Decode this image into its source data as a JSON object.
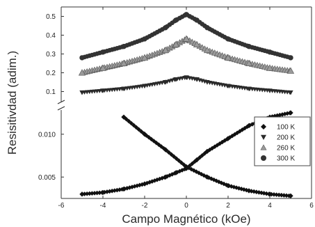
{
  "chart_data": {
    "type": "scatter",
    "xlabel": "Campo Magnético (kOe)",
    "ylabel": "Resisitivdad (adim.)",
    "xlim": [
      -6,
      6
    ],
    "x_ticks": [
      -6,
      -4,
      -2,
      0,
      2,
      4,
      6
    ],
    "y_break": true,
    "upper_panel": {
      "ylim": [
        0.05,
        0.55
      ],
      "y_ticks": [
        0.1,
        0.2,
        0.3,
        0.4,
        0.5
      ],
      "y_tick_labels": [
        "0.1",
        "0.2",
        "0.3",
        "0.4",
        "0.5"
      ]
    },
    "lower_panel": {
      "ylim": [
        0.0025,
        0.0125
      ],
      "y_ticks": [
        0.005,
        0.01
      ],
      "y_tick_labels": [
        "0.005",
        "0.010"
      ]
    },
    "legend": {
      "position": "right"
    },
    "series": [
      {
        "name": "100 K",
        "marker": "diamond",
        "panel": "lower",
        "x": [
          -5.0,
          -4.0,
          -3.0,
          -2.0,
          -1.0,
          -0.5,
          0.0,
          0.5,
          1.0,
          2.0,
          3.0,
          4.0,
          5.0
        ],
        "y": [
          0.003,
          0.0032,
          0.0036,
          0.0042,
          0.005,
          0.0055,
          0.006,
          0.007,
          0.008,
          0.0095,
          0.011,
          0.012,
          0.0125
        ]
      },
      {
        "name": "100 K",
        "marker": "diamond",
        "panel": "lower",
        "x": [
          -3.0,
          -2.0,
          -1.0,
          0.0,
          1.0,
          2.0,
          3.0,
          4.0,
          5.0
        ],
        "y": [
          0.012,
          0.01,
          0.0082,
          0.0062,
          0.005,
          0.004,
          0.0034,
          0.003,
          0.0028
        ]
      },
      {
        "name": "200 K",
        "marker": "triangle-down",
        "panel": "upper",
        "x": [
          -5.0,
          -4.0,
          -3.0,
          -2.0,
          -1.0,
          -0.5,
          0.0,
          0.5,
          1.0,
          2.0,
          3.0,
          4.0,
          5.0
        ],
        "y": [
          0.095,
          0.105,
          0.115,
          0.13,
          0.15,
          0.165,
          0.175,
          0.165,
          0.15,
          0.13,
          0.115,
          0.105,
          0.095
        ]
      },
      {
        "name": "260 K",
        "marker": "triangle-up",
        "panel": "upper",
        "x": [
          -5.0,
          -4.0,
          -3.0,
          -2.0,
          -1.0,
          -0.5,
          0.0,
          0.5,
          1.0,
          2.0,
          3.0,
          4.0,
          5.0
        ],
        "y": [
          0.2,
          0.225,
          0.25,
          0.28,
          0.32,
          0.35,
          0.38,
          0.35,
          0.32,
          0.28,
          0.25,
          0.225,
          0.21
        ]
      },
      {
        "name": "300 K",
        "marker": "circle",
        "panel": "upper",
        "x": [
          -5.0,
          -4.0,
          -3.0,
          -2.0,
          -1.0,
          -0.5,
          0.0,
          0.5,
          1.0,
          2.0,
          3.0,
          4.0,
          5.0
        ],
        "y": [
          0.28,
          0.31,
          0.34,
          0.38,
          0.44,
          0.48,
          0.51,
          0.48,
          0.44,
          0.38,
          0.34,
          0.31,
          0.28
        ]
      }
    ],
    "legend_entries": [
      "100 K",
      "200 K",
      "260 K",
      "300 K"
    ]
  }
}
